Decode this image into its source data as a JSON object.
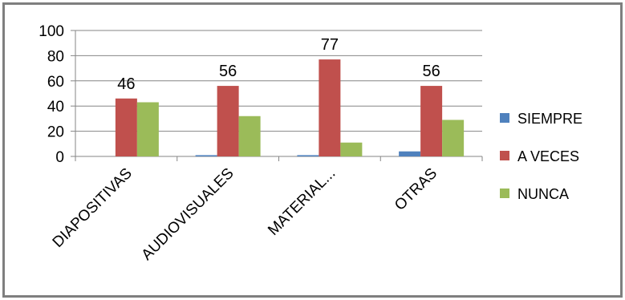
{
  "chart_data": {
    "type": "bar",
    "title": "",
    "xlabel": "",
    "ylabel": "",
    "categories": [
      "DIAPOSITIVAS",
      "AUDIOVISUALES",
      "MATERIAL...",
      "OTRAS"
    ],
    "series": [
      {
        "name": "SIEMPRE",
        "values": [
          0,
          1,
          1,
          4
        ],
        "color": "#4F81BD"
      },
      {
        "name": "A VECES",
        "values": [
          46,
          56,
          77,
          56
        ],
        "color": "#C0504D"
      },
      {
        "name": "NUNCA",
        "values": [
          43,
          32,
          11,
          29
        ],
        "color": "#9BBB59"
      }
    ],
    "data_labels": {
      "series": "A VECES",
      "values": [
        "46",
        "56",
        "77",
        "56"
      ]
    },
    "ylim": [
      0,
      100
    ],
    "yticks": [
      "0",
      "20",
      "40",
      "60",
      "80",
      "100"
    ],
    "grid": true,
    "legend_position": "right"
  }
}
